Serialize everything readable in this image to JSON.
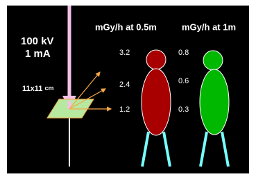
{
  "source": {
    "voltage": "100 kV",
    "current": "1 mA",
    "field": "11x11",
    "field_unit": "cm"
  },
  "headers": [
    "mGy/h at 0.5m",
    "mGy/h at 1m"
  ],
  "dose_0_5m": [
    3.2,
    2.4,
    1.2
  ],
  "dose_1m": [
    0.8,
    0.6,
    0.3
  ]
}
